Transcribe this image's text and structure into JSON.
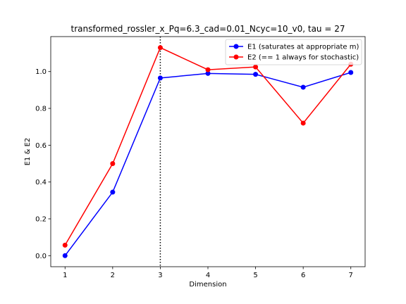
{
  "chart_data": {
    "type": "line",
    "title": "transformed_rossler_x_Pq=6.3_cad=0.01_Ncyc=10_v0, tau = 27",
    "xlabel": "Dimension",
    "ylabel": "E1 & E2",
    "x": [
      1,
      2,
      3,
      4,
      5,
      6,
      7
    ],
    "xlim": [
      0.7,
      7.3
    ],
    "ylim": [
      -0.06,
      1.19
    ],
    "xticks": [
      1,
      2,
      3,
      4,
      5,
      6,
      7
    ],
    "yticks": [
      0.0,
      0.2,
      0.4,
      0.6,
      0.8,
      1.0
    ],
    "ytick_labels": [
      "0.0",
      "0.2",
      "0.4",
      "0.6",
      "0.8",
      "1.0"
    ],
    "vline": {
      "x": 3,
      "style": "dotted",
      "color": "#000000"
    },
    "grid": false,
    "legend_position": "top-right",
    "series": [
      {
        "name": "E1 (saturates at appropriate m)",
        "color": "#0000ff",
        "values": [
          0.0,
          0.345,
          0.965,
          0.99,
          0.985,
          0.915,
          0.995
        ]
      },
      {
        "name": "E2 (== 1 always for stochastic)",
        "color": "#ff0000",
        "values": [
          0.057,
          0.5,
          1.13,
          1.01,
          1.025,
          0.72,
          1.04
        ]
      }
    ]
  }
}
